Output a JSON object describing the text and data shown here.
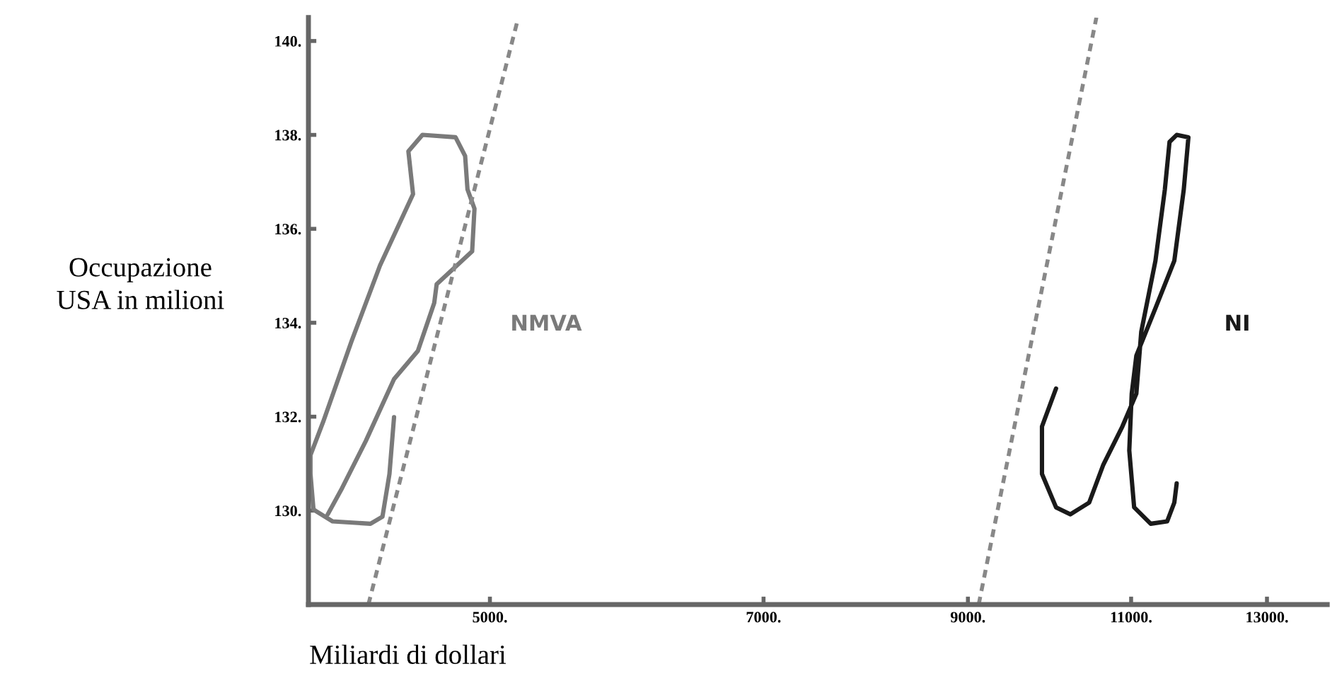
{
  "chart_data": {
    "type": "line",
    "xlabel": "Miliardi di dollari",
    "ylabel": "Occupazione\nUSA in milioni",
    "log": "x",
    "grid": false,
    "legend": false,
    "marker": "none",
    "xlim": [
      4000,
      14000
    ],
    "ylim": [
      128,
      140.5
    ],
    "xticks": [
      {
        "value": 5000,
        "label": "5000."
      },
      {
        "value": 7000,
        "label": "7000."
      },
      {
        "value": 9000,
        "label": "9000."
      },
      {
        "value": 11000,
        "label": "11000."
      },
      {
        "value": 13000,
        "label": "13000."
      }
    ],
    "yticks": [
      {
        "value": 130,
        "label": "130."
      },
      {
        "value": 132,
        "label": "132."
      },
      {
        "value": 134,
        "label": "134."
      },
      {
        "value": 136,
        "label": "136."
      },
      {
        "value": 138,
        "label": "138."
      },
      {
        "value": 140,
        "label": "140."
      }
    ],
    "series": [
      {
        "name": "NMVA",
        "color": "#7a7a7a",
        "line_style": "solid",
        "x": [
          4444,
          4419,
          4381,
          4317,
          4121,
          4025,
          4010,
          4010,
          4073,
          4218,
          4368,
          4549,
          4523,
          4602,
          4793,
          4850,
          4864,
          4906,
          4892,
          4683,
          4669,
          4576,
          4444,
          4292,
          4169,
          4096
        ],
        "values": [
          131.99,
          130.78,
          129.87,
          129.72,
          129.77,
          130.02,
          130.78,
          131.18,
          131.89,
          133.61,
          135.22,
          136.74,
          137.65,
          138.0,
          137.95,
          137.55,
          136.84,
          136.43,
          135.52,
          134.82,
          134.42,
          133.4,
          132.8,
          131.48,
          130.48,
          129.92
        ]
      },
      {
        "name": "NI",
        "color": "#1a1a1a",
        "line_style": "solid",
        "x": [
          10030,
          9858,
          9858,
          10030,
          10207,
          10447,
          10631,
          10882,
          11071,
          11138,
          11334,
          11466,
          11532,
          11634,
          11803,
          11736,
          11600,
          11334,
          11071,
          11008,
          10975,
          11041,
          11268,
          11498,
          11600,
          11634
        ],
        "values": [
          132.6,
          131.79,
          130.78,
          130.07,
          129.92,
          130.17,
          130.98,
          131.79,
          132.49,
          133.81,
          135.32,
          136.84,
          137.85,
          138.0,
          137.95,
          136.84,
          135.32,
          134.31,
          133.3,
          132.49,
          131.28,
          130.07,
          129.72,
          129.77,
          130.17,
          130.58
        ]
      },
      {
        "color": "#888888",
        "line_style": "dashed",
        "x": [
          4306,
          5170
        ],
        "values": [
          128,
          140.4
        ]
      },
      {
        "color": "#888888",
        "line_style": "dashed",
        "x": [
          9120,
          10540
        ],
        "values": [
          128,
          140.5
        ]
      }
    ]
  }
}
